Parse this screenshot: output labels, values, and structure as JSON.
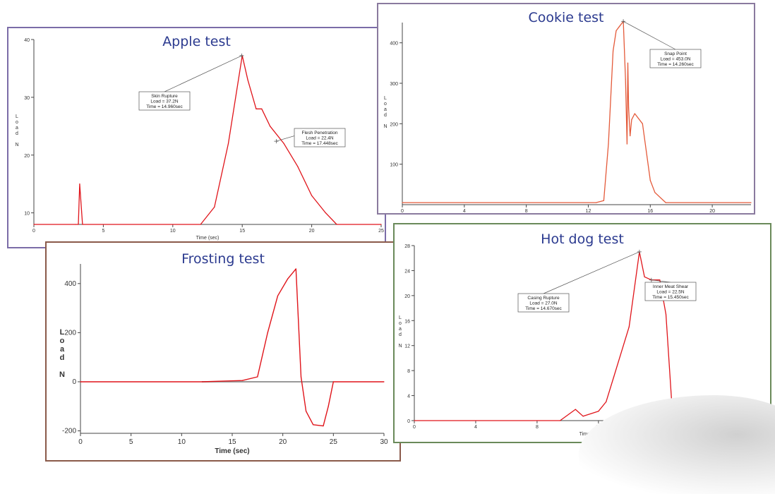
{
  "chart_data": [
    {
      "id": "apple",
      "type": "line",
      "title": "Apple test",
      "xlabel": "Time (sec)",
      "ylabel": "Load N",
      "xlim": [
        0,
        25
      ],
      "ylim": [
        8,
        40
      ],
      "xticks": [
        0,
        5,
        10,
        15,
        20,
        25
      ],
      "yticks": [
        10,
        20,
        30,
        40
      ],
      "series_color": "#e0141a",
      "series": [
        {
          "x": [
            0,
            3.0,
            3.2,
            3.3,
            3.5,
            12,
            13,
            14,
            15,
            15.4,
            16,
            16.4,
            17,
            18,
            19,
            20,
            21,
            21.8,
            25
          ],
          "y": [
            8,
            8,
            8,
            15,
            8,
            8,
            11,
            22,
            37.2,
            33,
            28,
            28,
            25,
            22,
            18,
            13,
            10,
            8,
            8
          ]
        }
      ],
      "annotations": [
        {
          "lines": [
            "Skin Rupture",
            "Load = 37.2N",
            "Time = 14.960sec"
          ],
          "x": 14.96,
          "y": 37.2
        },
        {
          "lines": [
            "Flesh Penetration",
            "Load = 22.4N",
            "Time = 17.448sec"
          ],
          "x": 17.448,
          "y": 22.4
        }
      ],
      "border_color": "#7b6ca8"
    },
    {
      "id": "cookie",
      "type": "line",
      "title": "Cookie test",
      "xlabel": "Time (sec)",
      "ylabel": "Load N",
      "xlim": [
        0,
        22.5
      ],
      "ylim": [
        0,
        450
      ],
      "xticks": [
        0,
        4,
        8,
        12,
        16,
        20
      ],
      "yticks": [
        100,
        200,
        300,
        400
      ],
      "series_color": "#e45a3a",
      "series": [
        {
          "x": [
            0,
            12.5,
            13,
            13.3,
            13.6,
            13.8,
            14.0,
            14.26,
            14.4,
            14.5,
            14.55,
            14.6,
            14.7,
            14.8,
            15,
            15.5,
            16,
            16.3,
            17,
            22.5
          ],
          "y": [
            5,
            5,
            10,
            150,
            380,
            430,
            440,
            453,
            310,
            150,
            350,
            240,
            170,
            210,
            225,
            200,
            60,
            30,
            5,
            5
          ]
        }
      ],
      "annotations": [
        {
          "lines": [
            "Snap Point",
            "Load = 453.0N",
            "Time = 14.260sec"
          ],
          "x": 14.26,
          "y": 453
        }
      ],
      "border_color": "#8a7a9e"
    },
    {
      "id": "frosting",
      "type": "line",
      "title": "Frosting test",
      "xlabel": "Time (sec)",
      "ylabel": "Load N",
      "xlim": [
        0,
        30
      ],
      "ylim": [
        -210,
        480
      ],
      "xticks": [
        0,
        5,
        10,
        15,
        20,
        25,
        30
      ],
      "yticks": [
        -200,
        0,
        200,
        400
      ],
      "series_color": "#e0141a",
      "series": [
        {
          "x": [
            0,
            12,
            16,
            17.5,
            18.5,
            19.5,
            20.5,
            21.3,
            21.8,
            22.3,
            23,
            24,
            24.5,
            25,
            30
          ],
          "y": [
            0,
            0,
            5,
            20,
            200,
            350,
            420,
            460,
            20,
            -120,
            -175,
            -180,
            -100,
            0,
            0
          ]
        }
      ],
      "annotations": [],
      "border_color": "#8a5a4a"
    },
    {
      "id": "hotdog",
      "type": "line",
      "title": "Hot dog test",
      "xlabel": "Time (sec)",
      "ylabel": "Load N",
      "xlim": [
        0,
        23
      ],
      "ylim": [
        0,
        28
      ],
      "xticks": [
        0,
        4,
        8,
        12,
        16,
        20
      ],
      "yticks": [
        0,
        4,
        8,
        12,
        16,
        20,
        24,
        28
      ],
      "series_color": "#e0141a",
      "series": [
        {
          "x": [
            0,
            9.5,
            10.5,
            11,
            12,
            12.5,
            13,
            14,
            14.67,
            15,
            15.45,
            16,
            16.4,
            16.8,
            17.5,
            22
          ],
          "y": [
            0,
            0,
            1.8,
            0.7,
            1.5,
            3,
            7,
            15,
            27,
            23,
            22.5,
            22.5,
            17,
            2,
            0.5,
            0.5
          ]
        }
      ],
      "annotations": [
        {
          "lines": [
            "Casing Rupture",
            "Load = 27.0N",
            "Time = 14.670sec"
          ],
          "x": 14.67,
          "y": 27
        },
        {
          "lines": [
            "Inner Meat Shear",
            "Load = 22.5N",
            "Time = 15.450sec"
          ],
          "x": 15.45,
          "y": 22.5
        }
      ],
      "border_color": "#6a8a5a"
    }
  ]
}
